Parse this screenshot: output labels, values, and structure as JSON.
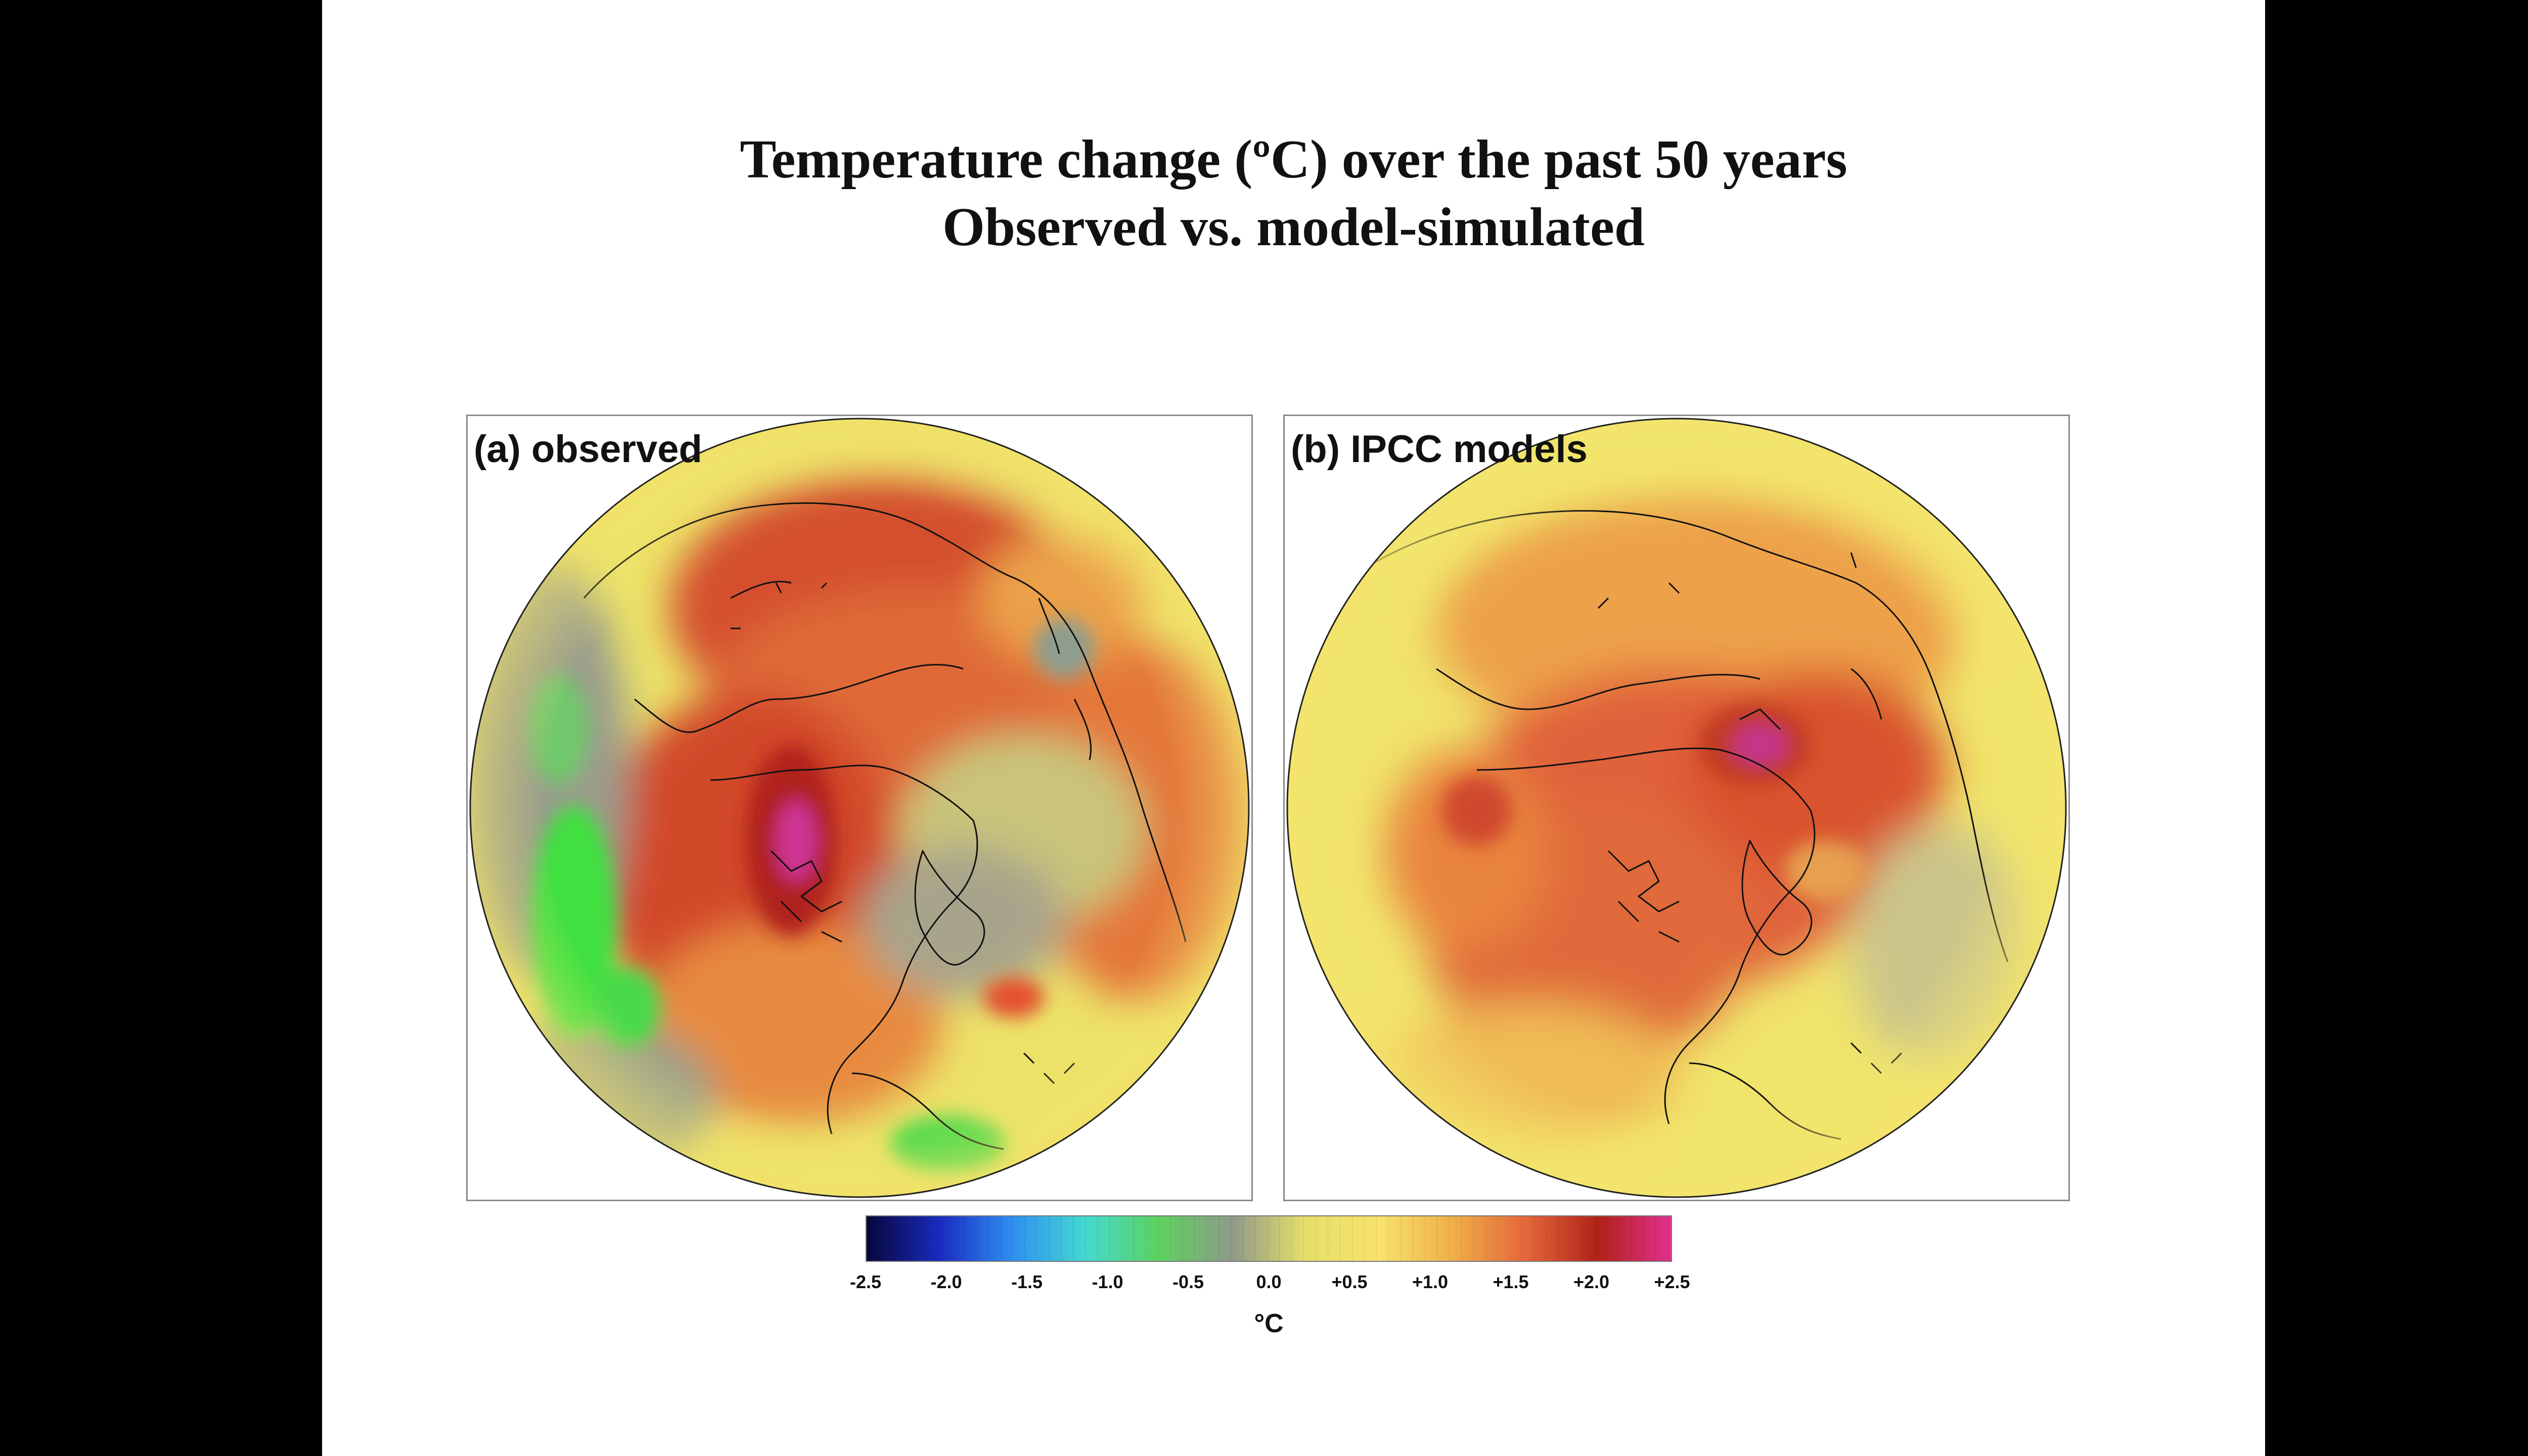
{
  "slide": {
    "title_line1": "Temperature change (ºC) over the past 50 years",
    "title_line2": "Observed vs. model-simulated"
  },
  "panels": [
    {
      "label": "(a) observed",
      "map": "observed-temperature-change-map"
    },
    {
      "label": "(b) IPCC models",
      "map": "model-simulated-temperature-change-map"
    }
  ],
  "colorbar": {
    "min": -2.5,
    "max": 2.5,
    "tick_labels": [
      "-2.5",
      "-2.0",
      "-1.5",
      "-1.0",
      "-0.5",
      "0.0",
      "+0.5",
      "+1.0",
      "+1.5",
      "+2.0",
      "+2.5"
    ],
    "unit": "°C",
    "stops": [
      "#07063b",
      "#1a2cc0",
      "#2f8ff2",
      "#45d9cf",
      "#5ed25e",
      "#8f9a8a",
      "#e6df6a",
      "#f8e36b",
      "#efb04a",
      "#e5683a",
      "#b02218",
      "#e0308c"
    ]
  },
  "colors": {
    "background": "#000000",
    "slide": "#ffffff",
    "coastline": "#111111"
  }
}
